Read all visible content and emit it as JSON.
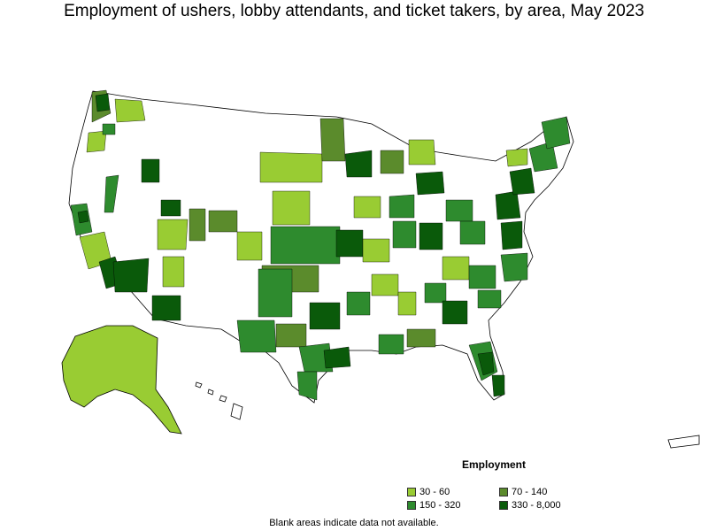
{
  "title": "Employment of ushers, lobby attendants, and ticket takers, by area, May 2023",
  "legend": {
    "title": "Employment",
    "items": [
      {
        "label": "30 - 60",
        "color": "#99cc33"
      },
      {
        "label": "70 - 140",
        "color": "#5b8b2c"
      },
      {
        "label": "150 - 320",
        "color": "#2e8b2e"
      },
      {
        "label": "330 - 8,000",
        "color": "#0a5a0a"
      }
    ]
  },
  "footnote": "Blank areas indicate data not available.",
  "colors": {
    "blank": "#ffffff",
    "border": "#000000"
  }
}
